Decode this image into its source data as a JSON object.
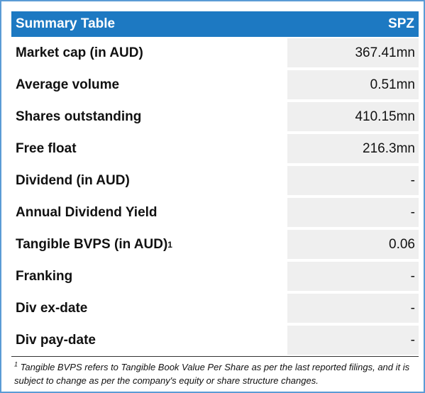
{
  "header": {
    "title": "Summary Table",
    "ticker": "SPZ"
  },
  "rows": [
    {
      "label": "Market cap (in AUD)",
      "value": "367.41mn"
    },
    {
      "label": "Average volume",
      "value": "0.51mn"
    },
    {
      "label": "Shares outstanding",
      "value": "410.15mn"
    },
    {
      "label": "Free float",
      "value": "216.3mn"
    },
    {
      "label": "Dividend (in AUD)",
      "value": "-"
    },
    {
      "label": "Annual Dividend Yield",
      "value": "-"
    },
    {
      "label": "Tangible BVPS (in AUD)",
      "label_sup": "1",
      "value": "0.06"
    },
    {
      "label": "Franking",
      "value": "-"
    },
    {
      "label": "Div ex-date",
      "value": "-"
    },
    {
      "label": "Div pay-date",
      "value": "-"
    }
  ],
  "footnote": {
    "marker": "1",
    "text": "Tangible BVPS refers to Tangible Book Value Per Share as per the last reported filings, and it is subject to change as per the company's equity or share structure changes."
  },
  "colors": {
    "header_bg": "#1d79c2",
    "border": "#5b9bd5",
    "value_bg": "#efefef"
  }
}
